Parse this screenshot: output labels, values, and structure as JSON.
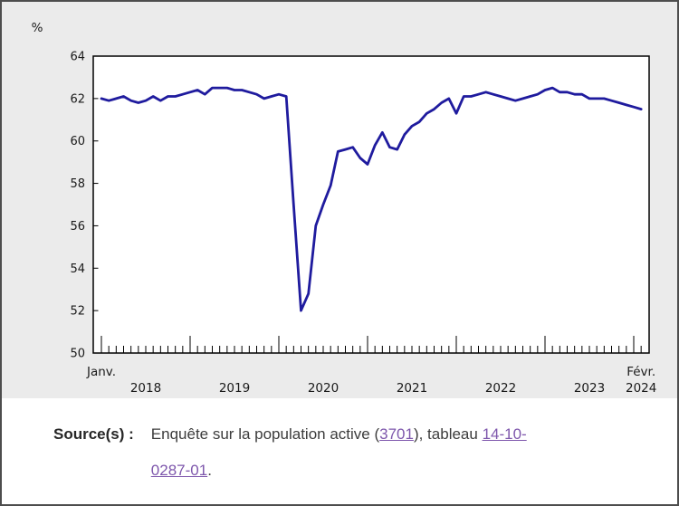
{
  "chart_data": {
    "type": "line",
    "title": "",
    "unit_label": "%",
    "x_start": "2018-01",
    "x_end": "2024-02",
    "ylim": [
      50,
      64
    ],
    "ytick_step": 2,
    "grid": false,
    "legend": "none",
    "line_color": "#1f1b9e",
    "x_axis": {
      "first_label": "Janv.",
      "last_label": "Févr.",
      "last_year": "2024",
      "years": [
        "2018",
        "2019",
        "2020",
        "2021",
        "2022",
        "2023"
      ]
    },
    "values": [
      62.0,
      61.9,
      62.0,
      62.1,
      61.9,
      61.8,
      61.9,
      62.1,
      61.9,
      62.1,
      62.1,
      62.2,
      62.3,
      62.4,
      62.2,
      62.5,
      62.5,
      62.5,
      62.4,
      62.4,
      62.3,
      62.2,
      62.0,
      62.1,
      62.2,
      62.1,
      57.0,
      52.0,
      52.8,
      56.0,
      57.0,
      57.9,
      59.5,
      59.6,
      59.7,
      59.2,
      58.9,
      59.8,
      60.4,
      59.7,
      59.6,
      60.3,
      60.7,
      60.9,
      61.3,
      61.5,
      61.8,
      62.0,
      61.3,
      62.1,
      62.1,
      62.2,
      62.3,
      62.2,
      62.1,
      62.0,
      61.9,
      62.0,
      62.1,
      62.2,
      62.4,
      62.5,
      62.3,
      62.3,
      62.2,
      62.2,
      62.0,
      62.0,
      62.0,
      61.9,
      61.8,
      61.7,
      61.6,
      61.5
    ]
  },
  "source": {
    "label": "Source(s) :",
    "text_before_link1": "Enquête sur la population active (",
    "link1": "3701",
    "text_between_links": "), tableau ",
    "link2_line1": "14-10-",
    "link2_line2": "0287-01",
    "text_after_links": "."
  },
  "colors": {
    "chart_background": "#ebebeb",
    "plot_background": "#ffffff",
    "axis": "#000000",
    "label_text": "#1a1a1a",
    "line": "#1f1b9e",
    "link": "#7e57ac",
    "frame_border": "#4d4d4d"
  }
}
